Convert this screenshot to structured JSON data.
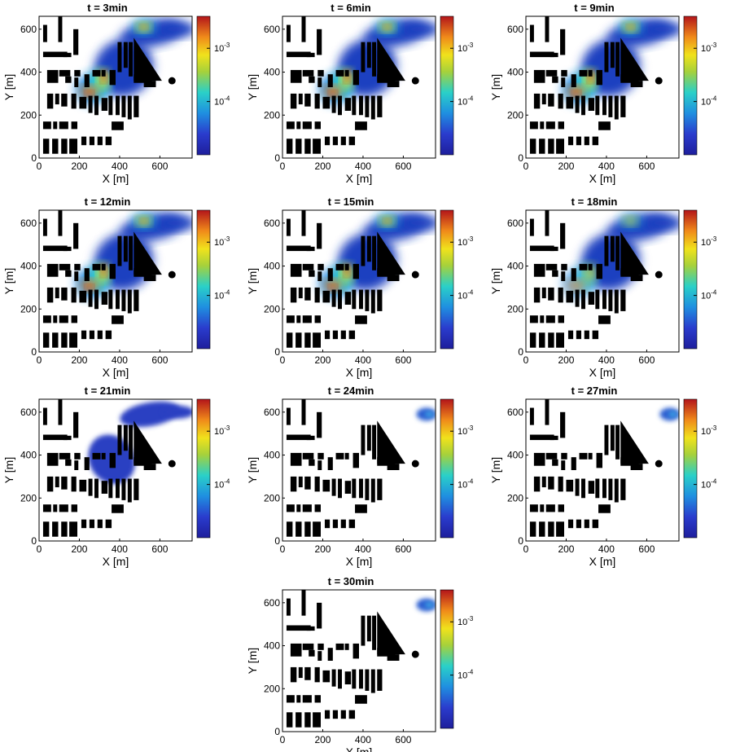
{
  "chart_data": {
    "type": "heatmap",
    "description_units": "concentration maps over urban domain at successive times",
    "x_label": "X [m]",
    "y_label": "Y [m]",
    "x_ticks": [
      0,
      200,
      400,
      600
    ],
    "y_ticks": [
      0,
      200,
      400,
      600
    ],
    "x_range": [
      0,
      760
    ],
    "y_range": [
      0,
      660
    ],
    "colorbar_ticks": [
      {
        "base": "10",
        "exp": "-3",
        "value": 0.001
      },
      {
        "base": "10",
        "exp": "-4",
        "value": 0.0001
      }
    ],
    "colormap": "jet",
    "panels": [
      {
        "title": "t = 3min",
        "intensity": 1.0,
        "extent": 1.0,
        "stage": "full"
      },
      {
        "title": "t = 6min",
        "intensity": 1.0,
        "extent": 1.0,
        "stage": "full"
      },
      {
        "title": "t = 9min",
        "intensity": 1.0,
        "extent": 1.0,
        "stage": "full"
      },
      {
        "title": "t = 12min",
        "intensity": 0.95,
        "extent": 1.0,
        "stage": "full"
      },
      {
        "title": "t = 15min",
        "intensity": 0.85,
        "extent": 1.0,
        "stage": "full"
      },
      {
        "title": "t = 18min",
        "intensity": 0.6,
        "extent": 1.0,
        "stage": "full"
      },
      {
        "title": "t = 21min",
        "intensity": 0.15,
        "extent": 0.8,
        "stage": "fading"
      },
      {
        "title": "t = 24min",
        "intensity": 0.1,
        "extent": 0.2,
        "stage": "edge"
      },
      {
        "title": "t = 27min",
        "intensity": 0.1,
        "extent": 0.15,
        "stage": "edge"
      },
      {
        "title": "t = 30min",
        "intensity": 0.1,
        "extent": 0.15,
        "stage": "edge"
      }
    ]
  }
}
